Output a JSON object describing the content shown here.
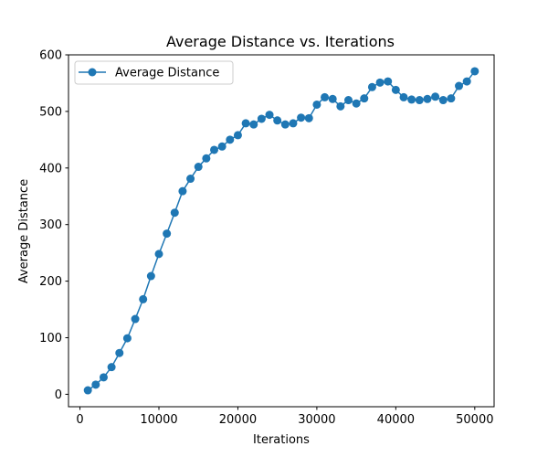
{
  "chart_data": {
    "type": "line",
    "title": "Average Distance vs. Iterations",
    "xlabel": "Iterations",
    "ylabel": "Average Distance",
    "xlim": [
      -1450,
      52450
    ],
    "ylim": [
      -22,
      600
    ],
    "xticks": [
      0,
      10000,
      20000,
      30000,
      40000,
      50000
    ],
    "yticks": [
      0,
      100,
      200,
      300,
      400,
      500,
      600
    ],
    "grid": false,
    "legend": {
      "placement": "top-left",
      "marker": "circle"
    },
    "series": [
      {
        "name": "Average Distance",
        "color": "#1f77b4",
        "marker": "circle",
        "x": [
          1000,
          2000,
          3000,
          4000,
          5000,
          6000,
          7000,
          8000,
          9000,
          10000,
          11000,
          12000,
          13000,
          14000,
          15000,
          16000,
          17000,
          18000,
          19000,
          20000,
          21000,
          22000,
          23000,
          24000,
          25000,
          26000,
          27000,
          28000,
          29000,
          30000,
          31000,
          32000,
          33000,
          34000,
          35000,
          36000,
          37000,
          38000,
          39000,
          40000,
          41000,
          42000,
          43000,
          44000,
          45000,
          46000,
          47000,
          48000,
          49000,
          50000
        ],
        "y": [
          7,
          17,
          30,
          48,
          73,
          99,
          133,
          168,
          209,
          248,
          284,
          321,
          359,
          381,
          402,
          417,
          432,
          438,
          450,
          458,
          479,
          477,
          487,
          494,
          484,
          477,
          479,
          489,
          488,
          512,
          525,
          522,
          509,
          520,
          514,
          523,
          543,
          551,
          553,
          538,
          525,
          521,
          520,
          522,
          526,
          520,
          523,
          545,
          553,
          571
        ]
      }
    ]
  }
}
